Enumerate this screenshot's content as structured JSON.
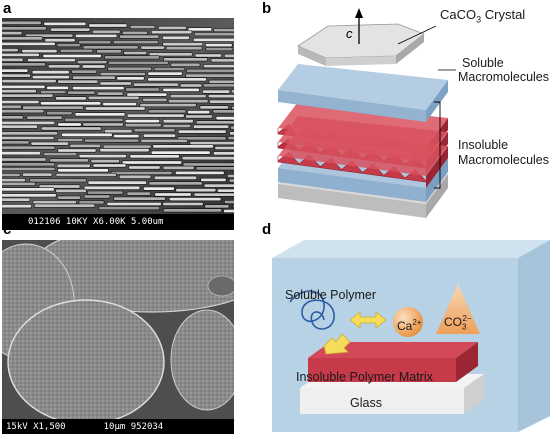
{
  "panels": {
    "a": {
      "letter": "a",
      "sem_caption": "012106 10KY X6.00K 5.00um"
    },
    "b": {
      "letter": "b",
      "axis_label": "c",
      "crystal_label_prefix": "CaCO",
      "crystal_label_sub": "3",
      "crystal_label_suffix": " Crystal",
      "soluble_label_1": "Soluble",
      "soluble_label_2": "Macromolecules",
      "insoluble_label_1": "Insoluble",
      "insoluble_label_2": "Macromolecules"
    },
    "c": {
      "letter": "c",
      "sem_caption_mag": "15kV X1,500",
      "sem_caption_scale": "10μm 952034"
    },
    "d": {
      "letter": "d",
      "soluble_polymer_label": "Soluble Polymer",
      "ca_base": "Ca",
      "ca_charge": "2+",
      "co_base": "CO",
      "co_sub": "3",
      "co_charge": "2−",
      "matrix_label": "Insoluble Polymer Matrix",
      "glass_label": "Glass"
    }
  },
  "colors": {
    "crystal_gray": "#c8c8c8",
    "soluble_blue": "#9dbad6",
    "insoluble_red": "#c63a4a",
    "box_blue": "#b7d2e4",
    "ion_orange": "#f0a460",
    "arrow_yellow": "#f5dc5a"
  }
}
